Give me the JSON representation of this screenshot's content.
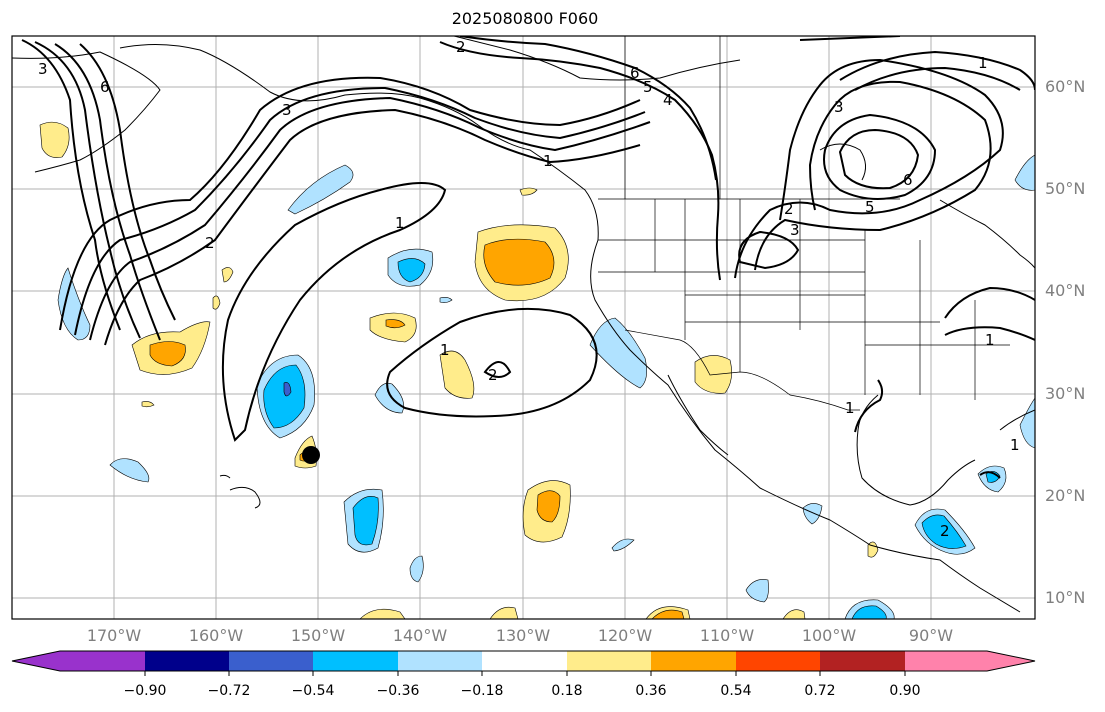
{
  "title": "2025080800 F060",
  "lat_labels": [
    "60°N",
    "50°N",
    "40°N",
    "30°N",
    "20°N",
    "10°N"
  ],
  "lon_labels": [
    "170°W",
    "160°W",
    "150°W",
    "140°W",
    "130°W",
    "120°W",
    "110°W",
    "100°W",
    "90°W"
  ],
  "contour_labels": [
    "3",
    "6",
    "2",
    "6",
    "5",
    "4",
    "3",
    "1",
    "2",
    "3",
    "6",
    "5",
    "3",
    "2",
    "1",
    "1",
    "1",
    "2",
    "1",
    "1",
    "2",
    "1"
  ],
  "colorbar": {
    "tick_labels": [
      "−0.90",
      "−0.72",
      "−0.54",
      "−0.36",
      "−0.18",
      "0.18",
      "0.36",
      "0.54",
      "0.72",
      "0.90"
    ],
    "colors": [
      "#9932cc",
      "#00008b",
      "#3a5fcd",
      "#00bfff",
      "#b0e2ff",
      "#ffffff",
      "#ffec8b",
      "#ffa500",
      "#ff4500",
      "#b22222",
      "#ff82ab"
    ]
  },
  "marker": {
    "lat": 24,
    "lon": -150.5,
    "color": "#000000"
  }
}
